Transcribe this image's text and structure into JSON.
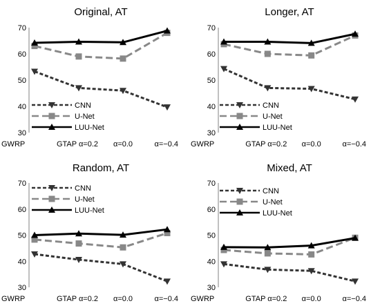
{
  "chart_data": [
    {
      "type": "line",
      "title": "Original, AT",
      "categories": [
        "GWRP",
        "GTAP α=0.2",
        "α=0.0",
        "α=−0.4"
      ],
      "ylim": [
        30,
        70
      ],
      "yticks": [
        "30",
        "40",
        "50",
        "60",
        "70"
      ],
      "grid": false,
      "legend_position": "bottom-left",
      "series": [
        {
          "name": "CNN",
          "values": [
            53.3,
            47.0,
            46.0,
            39.7
          ]
        },
        {
          "name": "U-Net",
          "values": [
            63.0,
            59.0,
            58.2,
            68.0
          ]
        },
        {
          "name": "LUU-Net",
          "values": [
            64.2,
            64.6,
            64.4,
            68.8
          ]
        }
      ]
    },
    {
      "type": "line",
      "title": "Longer, AT",
      "categories": [
        "GWRP",
        "GTAP α=0.2",
        "α=0.0",
        "α=−0.4"
      ],
      "ylim": [
        30,
        70
      ],
      "yticks": [
        "30",
        "40",
        "50",
        "60",
        "70"
      ],
      "grid": false,
      "legend_position": "bottom-left",
      "series": [
        {
          "name": "CNN",
          "values": [
            54.3,
            47.0,
            46.7,
            42.7
          ]
        },
        {
          "name": "U-Net",
          "values": [
            63.7,
            60.0,
            59.4,
            67.0
          ]
        },
        {
          "name": "LUU-Net",
          "values": [
            64.6,
            64.6,
            64.1,
            67.6
          ]
        }
      ]
    },
    {
      "type": "line",
      "title": "Random, AT",
      "categories": [
        "GWRP",
        "GTAP α=0.2",
        "α=0.0",
        "α=−0.4"
      ],
      "ylim": [
        30,
        70
      ],
      "yticks": [
        "30",
        "40",
        "50",
        "60",
        "70"
      ],
      "grid": false,
      "legend_position": "top-left",
      "series": [
        {
          "name": "CNN",
          "values": [
            42.7,
            40.6,
            38.9,
            32.3
          ]
        },
        {
          "name": "U-Net",
          "values": [
            48.3,
            46.8,
            45.3,
            50.8
          ]
        },
        {
          "name": "LUU-Net",
          "values": [
            50.0,
            50.6,
            50.1,
            52.2
          ]
        }
      ]
    },
    {
      "type": "line",
      "title": "Mixed, AT",
      "categories": [
        "GWRP",
        "GTAP α=0.2",
        "α=0.0",
        "α=−0.4"
      ],
      "ylim": [
        30,
        70
      ],
      "yticks": [
        "30",
        "40",
        "50",
        "60",
        "70"
      ],
      "grid": false,
      "legend_position": "top-left",
      "series": [
        {
          "name": "CNN",
          "values": [
            38.9,
            36.8,
            36.3,
            32.3
          ]
        },
        {
          "name": "U-Net",
          "values": [
            44.3,
            43.0,
            42.6,
            49.0
          ]
        },
        {
          "name": "LUU-Net",
          "values": [
            45.4,
            45.3,
            46.0,
            48.9
          ]
        }
      ]
    }
  ],
  "style": {
    "colors": {
      "CNN": "#333333",
      "U-Net": "#888888",
      "LUU-Net": "#000000"
    },
    "markers": {
      "CNN": "triangle-down",
      "U-Net": "square",
      "LUU-Net": "triangle-up"
    },
    "dashes": {
      "CNN": "dashed",
      "U-Net": "long-dashed",
      "LUU-Net": "solid"
    }
  }
}
